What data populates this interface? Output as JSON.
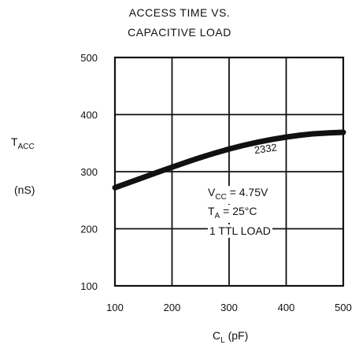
{
  "chart_data": {
    "type": "line",
    "title_line1": "ACCESS TIME VS.",
    "title_line2": "CAPACITIVE LOAD",
    "ylabel_main": "T",
    "ylabel_sub": "ACC",
    "yunit": "(nS)",
    "xlabel_main": "C",
    "xlabel_sub": "L",
    "xunit": "(pF)",
    "xlim": [
      100,
      500
    ],
    "ylim": [
      100,
      500
    ],
    "x_ticks": [
      "100",
      "200",
      "300",
      "400",
      "500"
    ],
    "y_ticks": [
      "100",
      "200",
      "300",
      "400",
      "500"
    ],
    "grid": true,
    "series": [
      {
        "name": "2332",
        "x": [
          100,
          150,
          200,
          250,
          300,
          350,
          400,
          450,
          500
        ],
        "y": [
          272,
          290,
          308,
          325,
          340,
          352,
          361,
          367,
          369
        ]
      }
    ],
    "conditions": {
      "vcc_main": "V",
      "vcc_sub": "CC",
      "vcc_value": "= 4.75V",
      "ta_main": "T",
      "ta_sub": "A",
      "ta_value": "= 25°C",
      "load": "1 TTL LOAD"
    }
  }
}
